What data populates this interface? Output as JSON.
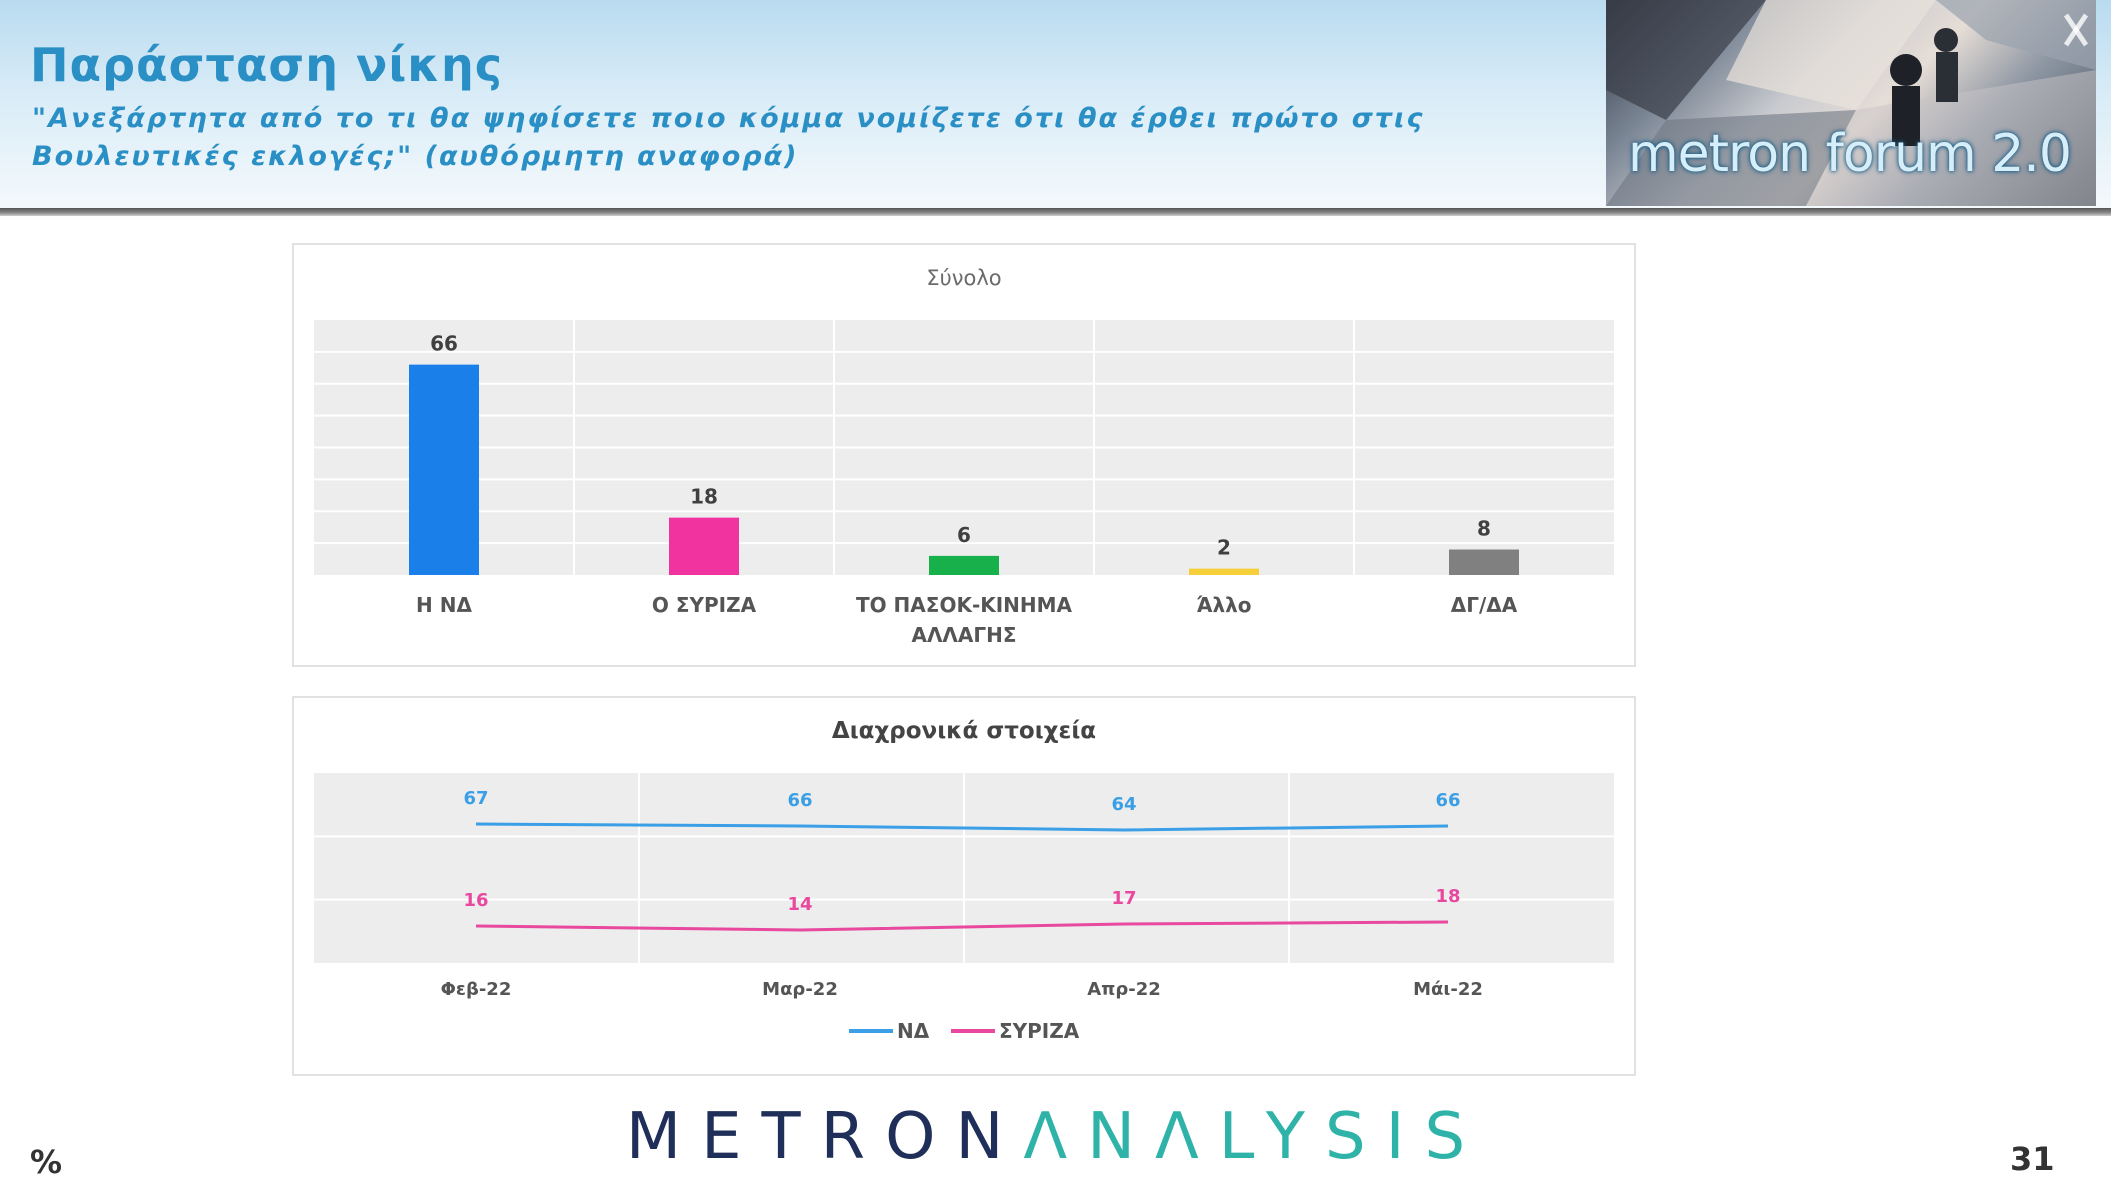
{
  "header": {
    "title": "Παράσταση νίκης",
    "subtitle": "\"Ανεξάρτητα από το τι θα ψηφίσετε ποιο κόμμα νομίζετε ότι θα έρθει πρώτο στις Βουλευτικές εκλογές;\" (αυθόρμητη αναφορά)",
    "photo_label": "metron forum 2.0"
  },
  "footer": {
    "brand_part1": "METRON",
    "brand_part2": "ΛNΛLYSIS",
    "percent_sign": "%",
    "page_number": "31"
  },
  "colors": {
    "title": "#2a8fc4",
    "nd": "#1a7fe8",
    "syriza": "#f0339f",
    "pasok": "#17b04a",
    "allo": "#f7cf3a",
    "dg_da": "#808080",
    "line_nd": "#3a9fe6",
    "line_syriza": "#e8489d"
  },
  "chart_data": [
    {
      "type": "bar",
      "title": "Σύνολο",
      "categories": [
        "Η ΝΔ",
        "Ο ΣΥΡΙΖΑ",
        "ΤΟ ΠΑΣΟΚ-ΚΙΝΗΜΑ ΑΛΛΑΓΗΣ",
        "Άλλο",
        "ΔΓ/ΔΑ"
      ],
      "values": [
        66,
        18,
        6,
        2,
        8
      ],
      "bar_colors": [
        "#1a7fe8",
        "#f0339f",
        "#17b04a",
        "#f7cf3a",
        "#808080"
      ],
      "ylim": [
        0,
        80
      ],
      "grid": true,
      "data_labels": true
    },
    {
      "type": "line",
      "title": "Διαχρονικά στοιχεία",
      "categories": [
        "Φεβ-22",
        "Μαρ-22",
        "Απρ-22",
        "Μάι-22"
      ],
      "series": [
        {
          "name": "ΝΔ",
          "values": [
            67,
            66,
            64,
            66
          ],
          "color": "#3a9fe6"
        },
        {
          "name": "ΣΥΡΙΖΑ",
          "values": [
            16,
            14,
            17,
            18
          ],
          "color": "#e8489d"
        }
      ],
      "legend": "bottom",
      "grid": true,
      "data_labels": true
    }
  ]
}
